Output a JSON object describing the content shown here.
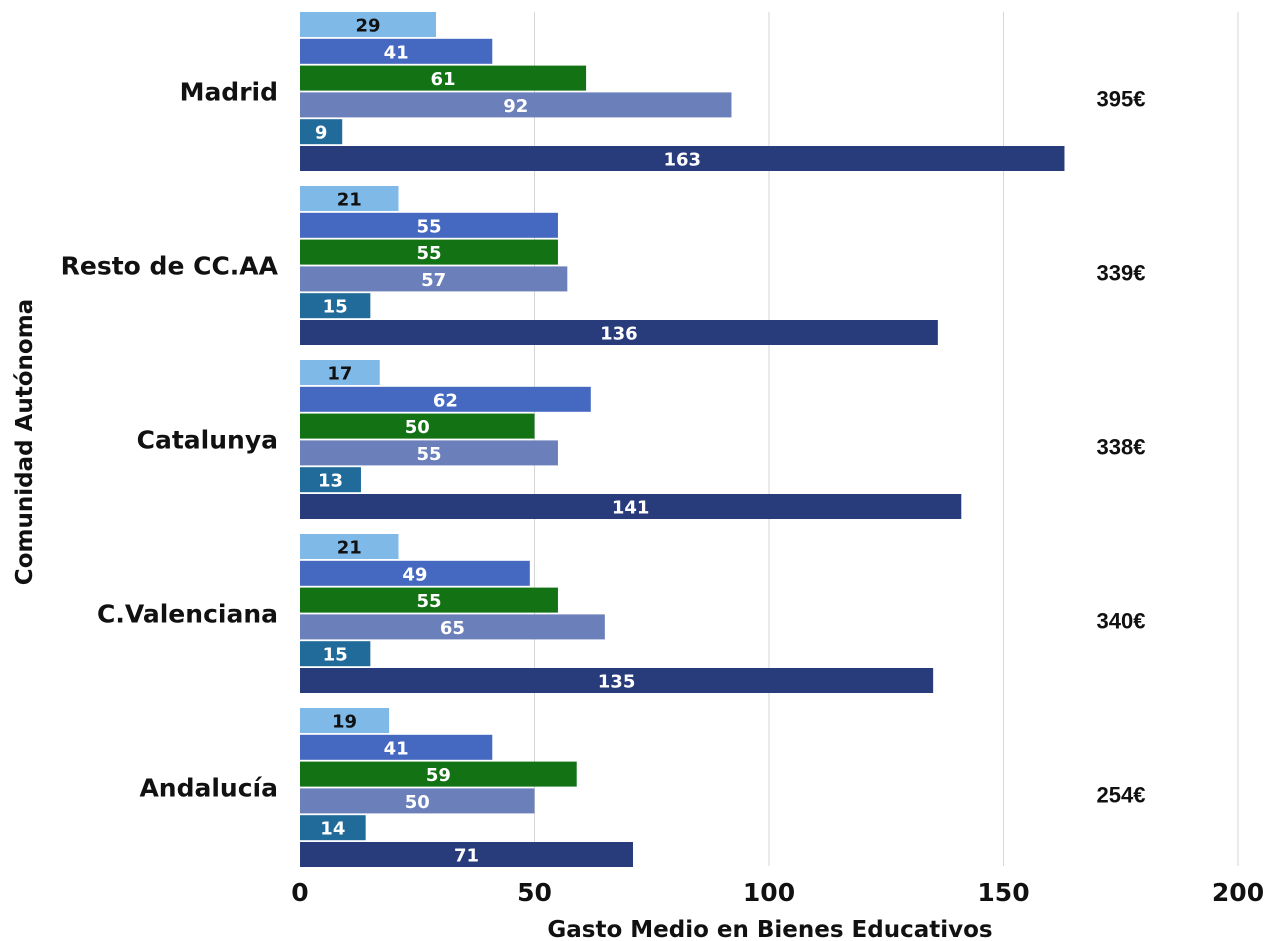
{
  "chart_data": {
    "type": "bar",
    "orientation": "horizontal",
    "xlabel": "Gasto Medio en Bienes Educativos",
    "ylabel": "Comunidad Autónoma",
    "xlim": [
      0,
      200
    ],
    "xticks": [
      "0",
      "50",
      "100",
      "150",
      "200"
    ],
    "grid": true,
    "categories": [
      "Madrid",
      "Resto de CC.AA",
      "Catalunya",
      "C.Valenciana",
      "Andalucía"
    ],
    "series": [
      {
        "color": "#7fb9e8",
        "values": [
          29,
          21,
          17,
          21,
          19
        ]
      },
      {
        "color": "#4569c1",
        "values": [
          41,
          55,
          62,
          49,
          41
        ]
      },
      {
        "color": "#137214",
        "values": [
          61,
          55,
          50,
          55,
          59
        ]
      },
      {
        "color": "#6b80bb",
        "values": [
          92,
          57,
          55,
          65,
          50
        ]
      },
      {
        "color": "#216b9b",
        "values": [
          9,
          15,
          13,
          15,
          14
        ]
      },
      {
        "color": "#283b7b",
        "values": [
          163,
          136,
          141,
          135,
          71
        ]
      }
    ],
    "totals": [
      "395€",
      "339€",
      "338€",
      "340€",
      "254€"
    ]
  }
}
